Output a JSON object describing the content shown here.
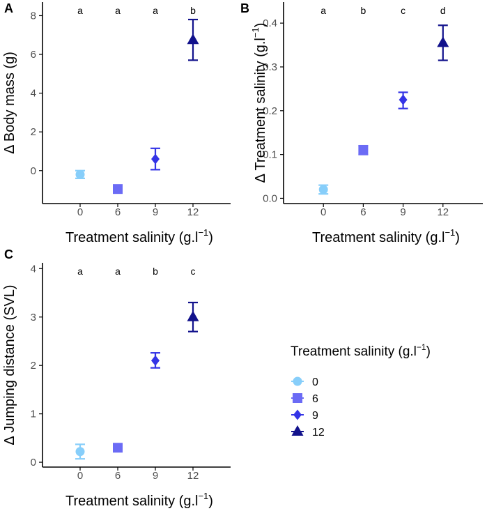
{
  "colors": {
    "axis": "#000000",
    "tick_text": "#4d4d4d",
    "errorbar": "#000000",
    "group_0": "#87CEFA",
    "group_6": "#6B6BF5",
    "group_9": "#3434E6",
    "group_12": "#12128C"
  },
  "legend": {
    "title": "Treatment salinity (g.l",
    "title_sup": "−1",
    "title_close": ")",
    "items": [
      {
        "label": "0",
        "shape": "circle",
        "color_key": "group_0"
      },
      {
        "label": "6",
        "shape": "square",
        "color_key": "group_6"
      },
      {
        "label": "9",
        "shape": "diamond",
        "color_key": "group_9"
      },
      {
        "label": "12",
        "shape": "triangle",
        "color_key": "group_12"
      }
    ]
  },
  "chart_data": [
    {
      "panel": "A",
      "type": "scatter",
      "xlabel": "Treatment salinity (g.l",
      "xlabel_sup": "−1",
      "xlabel_close": ")",
      "ylabel": "Δ Body mass (g)",
      "ylabel_sup": "",
      "ylabel_close": "",
      "categories": [
        "0",
        "6",
        "9",
        "12"
      ],
      "values": [
        -0.2,
        -0.95,
        0.6,
        6.75
      ],
      "err_low": [
        -0.4,
        -1.05,
        0.05,
        5.7
      ],
      "err_high": [
        0.0,
        -0.85,
        1.15,
        7.8
      ],
      "letters": [
        "a",
        "a",
        "a",
        "b"
      ],
      "ylim": [
        -1.7,
        8.7
      ],
      "yticks": [
        0,
        2,
        4,
        6,
        8
      ],
      "ytick_labels": [
        "0",
        "2",
        "4",
        "6",
        "8"
      ]
    },
    {
      "panel": "B",
      "type": "scatter",
      "xlabel": "Treatment salinity (g.l",
      "xlabel_sup": "−1",
      "xlabel_close": ")",
      "ylabel": "Δ Treatment salinity (g.l",
      "ylabel_sup": "−1",
      "ylabel_close": ")",
      "categories": [
        "0",
        "6",
        "9",
        "12"
      ],
      "values": [
        0.02,
        0.11,
        0.225,
        0.355
      ],
      "err_low": [
        0.01,
        0.1,
        0.205,
        0.315
      ],
      "err_high": [
        0.03,
        0.12,
        0.242,
        0.395
      ],
      "letters": [
        "a",
        "b",
        "c",
        "d"
      ],
      "ylim": [
        -0.012,
        0.448
      ],
      "yticks": [
        0.0,
        0.1,
        0.2,
        0.3,
        0.4
      ],
      "ytick_labels": [
        "0.0",
        "0.1",
        "0.2",
        "0.3",
        "0.4"
      ]
    },
    {
      "panel": "C",
      "type": "scatter",
      "xlabel": "Treatment salinity (g.l",
      "xlabel_sup": "−1",
      "xlabel_close": ")",
      "ylabel": "Δ Jumping distance (SVL)",
      "ylabel_sup": "",
      "ylabel_close": "",
      "categories": [
        "0",
        "6",
        "9",
        "12"
      ],
      "values": [
        0.22,
        0.3,
        2.1,
        3.0
      ],
      "err_low": [
        0.07,
        0.22,
        1.95,
        2.7
      ],
      "err_high": [
        0.37,
        0.38,
        2.26,
        3.3
      ],
      "letters": [
        "a",
        "a",
        "b",
        "c"
      ],
      "ylim": [
        -0.1,
        4.12
      ],
      "yticks": [
        0,
        1,
        2,
        3,
        4
      ],
      "ytick_labels": [
        "0",
        "1",
        "2",
        "3",
        "4"
      ]
    }
  ]
}
